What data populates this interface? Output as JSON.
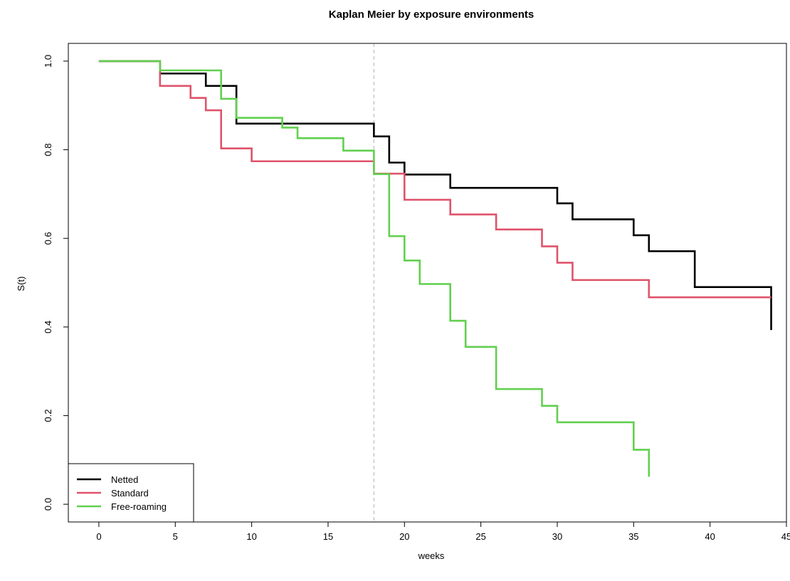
{
  "chart_data": {
    "type": "line",
    "subtype": "step",
    "title": "Kaplan Meier by exposure environments",
    "xlabel": "weeks",
    "ylabel": "S(t)",
    "xlim": [
      -2,
      45
    ],
    "ylim": [
      -0.04,
      1.04
    ],
    "xticks": [
      0,
      5,
      10,
      15,
      20,
      25,
      30,
      35,
      40,
      45
    ],
    "yticks": [
      0.0,
      0.2,
      0.4,
      0.6,
      0.8,
      1.0
    ],
    "xtick_labels": [
      "0",
      "5",
      "10",
      "15",
      "20",
      "25",
      "30",
      "35",
      "40",
      "45"
    ],
    "ytick_labels": [
      "0.0",
      "0.2",
      "0.4",
      "0.6",
      "0.8",
      "1.0"
    ],
    "grid": false,
    "legend_position": "bottom-left",
    "vline": {
      "x": 18,
      "style": "dashed",
      "color": "#bebebe"
    },
    "series": [
      {
        "name": "Netted",
        "color": "#000000",
        "x": [
          0,
          4,
          7,
          8,
          9,
          18,
          19,
          20,
          23,
          30,
          31,
          35,
          36,
          39,
          44,
          44
        ],
        "y": [
          1.0,
          0.972,
          0.944,
          0.944,
          0.859,
          0.83,
          0.771,
          0.744,
          0.714,
          0.679,
          0.643,
          0.607,
          0.571,
          0.49,
          0.49,
          0.393
        ]
      },
      {
        "name": "Standard",
        "color": "#DF536B",
        "x": [
          0,
          4,
          6,
          7,
          8,
          10,
          18,
          20,
          23,
          26,
          29,
          30,
          31,
          36,
          44
        ],
        "y": [
          1.0,
          0.944,
          0.917,
          0.889,
          0.803,
          0.774,
          0.746,
          0.687,
          0.654,
          0.62,
          0.582,
          0.545,
          0.506,
          0.467,
          0.467
        ]
      },
      {
        "name": "Free-roaming",
        "color": "#61D04F",
        "x": [
          0,
          4,
          8,
          9,
          12,
          13,
          16,
          18,
          19,
          20,
          21,
          23,
          24,
          26,
          29,
          30,
          35,
          36,
          36
        ],
        "y": [
          1.0,
          0.979,
          0.915,
          0.872,
          0.85,
          0.826,
          0.798,
          0.745,
          0.605,
          0.55,
          0.497,
          0.414,
          0.355,
          0.26,
          0.222,
          0.185,
          0.123,
          0.123,
          0.062
        ]
      }
    ]
  }
}
